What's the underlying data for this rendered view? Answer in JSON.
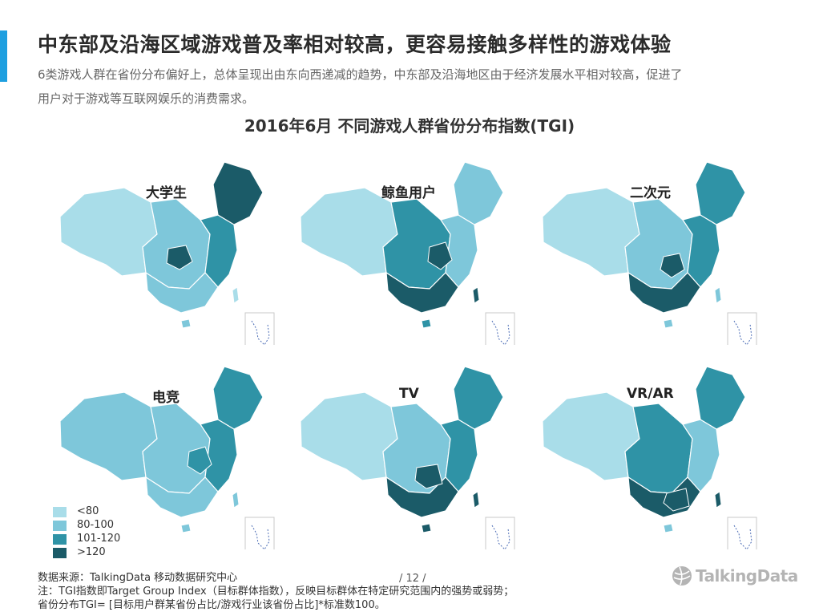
{
  "header": {
    "title": "中东部及沿海区域游戏普及率相对较高，更容易接触多样性的游戏体验",
    "subtitle": "6类游戏人群在省份分布偏好上，总体呈现出由东向西递减的趋势，中东部及沿海地区由于经济发展水平相对较高，促进了用户对于游戏等互联网娱乐的消费需求。"
  },
  "chart_title": "2016年6月 不同游戏人群省份分布指数(TGI)",
  "colors": {
    "lt80": "#a9dde9",
    "80to100": "#7ec7da",
    "101to120": "#2f93a6",
    "gt120": "#1b5b68",
    "accent": "#1e9fe0"
  },
  "maps": [
    {
      "label": "大学生",
      "levels": {
        "west": 0,
        "center": 1,
        "east": 2,
        "northeast": 3,
        "south": 1,
        "hainan": 1,
        "taiwan": 0,
        "hotspot": 3
      }
    },
    {
      "label": "鲸鱼用户",
      "levels": {
        "west": 0,
        "center": 2,
        "east": 1,
        "northeast": 1,
        "south": 3,
        "hainan": 2,
        "taiwan": 3,
        "hotspot": 3
      }
    },
    {
      "label": "二次元",
      "levels": {
        "west": 0,
        "center": 1,
        "east": 2,
        "northeast": 2,
        "south": 3,
        "hainan": 1,
        "taiwan": 1,
        "hotspot": 3
      }
    },
    {
      "label": "电竞",
      "levels": {
        "west": 1,
        "center": 1,
        "east": 2,
        "northeast": 2,
        "south": 1,
        "hainan": 1,
        "taiwan": 1,
        "hotspot": 2
      }
    },
    {
      "label": "TV",
      "levels": {
        "west": 0,
        "center": 1,
        "east": 2,
        "northeast": 2,
        "south": 3,
        "hainan": 3,
        "taiwan": 3,
        "hotspot": 3
      }
    },
    {
      "label": "VR/AR",
      "levels": {
        "west": 0,
        "center": 2,
        "east": 1,
        "northeast": 2,
        "south": 3,
        "hainan": 1,
        "taiwan": 3,
        "hotspot": 3
      }
    }
  ],
  "legend": [
    {
      "label": "<80"
    },
    {
      "label": "80-100"
    },
    {
      "label": "101-120"
    },
    {
      "label": ">120"
    }
  ],
  "footer": {
    "source": "数据来源：TalkingData 移动数据研究中心",
    "note1": "注：TGI指数即Target Group Index（目标群体指数），反映目标群体在特定研究范围内的强势或弱势；",
    "note2": "省份分布TGI= [目标用户群某省份占比/游戏行业该省份占比]*标准数100。",
    "page": "/  12  /"
  },
  "logo": {
    "text": "TalkingData"
  }
}
